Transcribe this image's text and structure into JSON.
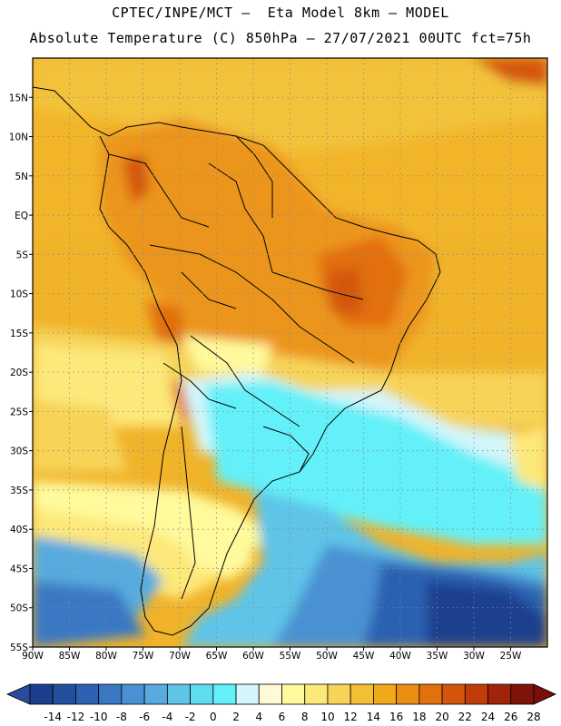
{
  "header": {
    "line1": "CPTEC/INPE/MCT —  Eta Model 8km — MODEL",
    "line2": "Absolute Temperature (C) 850hPa — 27/07/2021 00UTC fct=75h"
  },
  "map": {
    "lon_range": [
      -90,
      -20
    ],
    "lat_range": [
      -55,
      20
    ],
    "lon_ticks": [
      {
        "v": -90,
        "label": "90W"
      },
      {
        "v": -85,
        "label": "85W"
      },
      {
        "v": -80,
        "label": "80W"
      },
      {
        "v": -75,
        "label": "75W"
      },
      {
        "v": -70,
        "label": "70W"
      },
      {
        "v": -65,
        "label": "65W"
      },
      {
        "v": -60,
        "label": "60W"
      },
      {
        "v": -55,
        "label": "55W"
      },
      {
        "v": -50,
        "label": "50W"
      },
      {
        "v": -45,
        "label": "45W"
      },
      {
        "v": -40,
        "label": "40W"
      },
      {
        "v": -35,
        "label": "35W"
      },
      {
        "v": -30,
        "label": "30W"
      },
      {
        "v": -25,
        "label": "25W"
      }
    ],
    "lat_ticks": [
      {
        "v": 15,
        "label": "15N"
      },
      {
        "v": 10,
        "label": "10N"
      },
      {
        "v": 5,
        "label": "5N"
      },
      {
        "v": 0,
        "label": "EQ"
      },
      {
        "v": -5,
        "label": "5S"
      },
      {
        "v": -10,
        "label": "10S"
      },
      {
        "v": -15,
        "label": "15S"
      },
      {
        "v": -20,
        "label": "20S"
      },
      {
        "v": -25,
        "label": "25S"
      },
      {
        "v": -30,
        "label": "30S"
      },
      {
        "v": -35,
        "label": "35S"
      },
      {
        "v": -40,
        "label": "40S"
      },
      {
        "v": -45,
        "label": "45S"
      },
      {
        "v": -50,
        "label": "50S"
      },
      {
        "v": -55,
        "label": "55S"
      }
    ],
    "gridlines": "dotted"
  },
  "colorbar": {
    "labels": [
      "-14",
      "-12",
      "-10",
      "-8",
      "-6",
      "-4",
      "-2",
      "0",
      "2",
      "4",
      "6",
      "8",
      "10",
      "12",
      "14",
      "16",
      "18",
      "20",
      "22",
      "24",
      "26",
      "28"
    ],
    "colors": [
      "#1b3f8e",
      "#22509f",
      "#2c62b1",
      "#3a78c3",
      "#4a91d3",
      "#58abdf",
      "#5ec4e8",
      "#60dcf0",
      "#63f0f8",
      "#d2f6fb",
      "#fff8d9",
      "#fffa9c",
      "#fde87a",
      "#f7d458",
      "#f3c035",
      "#f0a81c",
      "#ec8e14",
      "#e2700e",
      "#d4560c",
      "#c23c0a",
      "#a02409",
      "#7e1408"
    ],
    "left_arrow": "#2a4a9e",
    "right_arrow": "#7a0c0c"
  }
}
